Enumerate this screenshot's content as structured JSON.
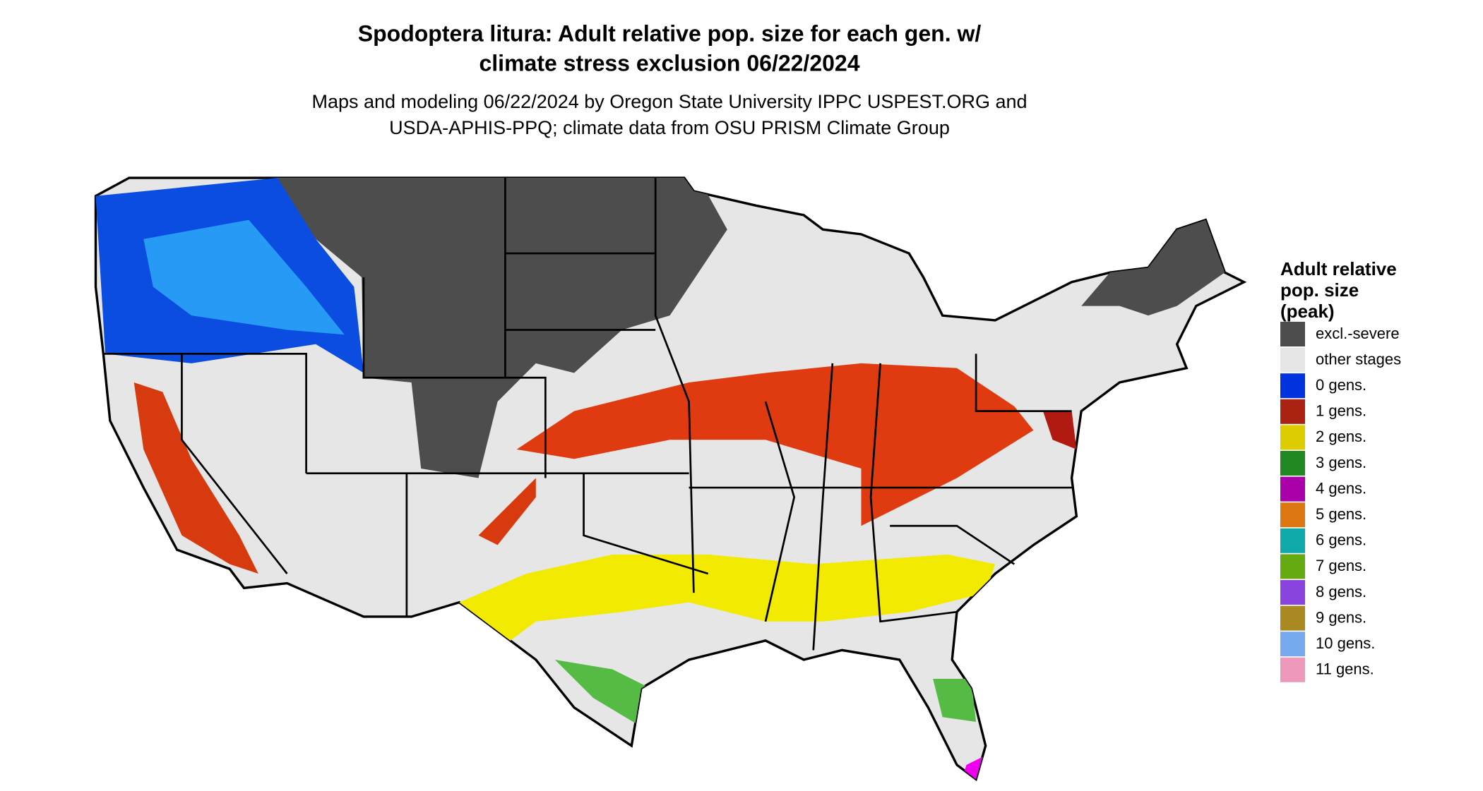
{
  "header": {
    "title": [
      "Spodoptera litura: Adult relative pop. size for each gen. w/",
      "climate stress exclusion 06/22/2024"
    ],
    "subtitle": [
      "Maps and modeling 06/22/2024 by Oregon State University IPPC USPEST.ORG and",
      "USDA-APHIS-PPQ; climate data from OSU PRISM Climate Group"
    ]
  },
  "legend": {
    "title": [
      "Adult relative",
      "pop. size",
      "(peak)"
    ],
    "items": [
      {
        "label": "excl.-severe",
        "color": "#4d4d4d"
      },
      {
        "label": "other stages",
        "color": "#e6e6e6"
      },
      {
        "label": "0 gens.",
        "color": "#0033dd"
      },
      {
        "label": "1 gens.",
        "color": "#aa2211"
      },
      {
        "label": "2 gens.",
        "color": "#ddcc00"
      },
      {
        "label": "3 gens.",
        "color": "#228822"
      },
      {
        "label": "4 gens.",
        "color": "#aa00aa"
      },
      {
        "label": "5 gens.",
        "color": "#dd7711"
      },
      {
        "label": "6 gens.",
        "color": "#11aaaa"
      },
      {
        "label": "7 gens.",
        "color": "#66aa11"
      },
      {
        "label": "8 gens.",
        "color": "#8844dd"
      },
      {
        "label": "9 gens.",
        "color": "#aa8822"
      },
      {
        "label": "10 gens.",
        "color": "#77aaee"
      },
      {
        "label": "11 gens.",
        "color": "#ee99bb"
      }
    ]
  }
}
